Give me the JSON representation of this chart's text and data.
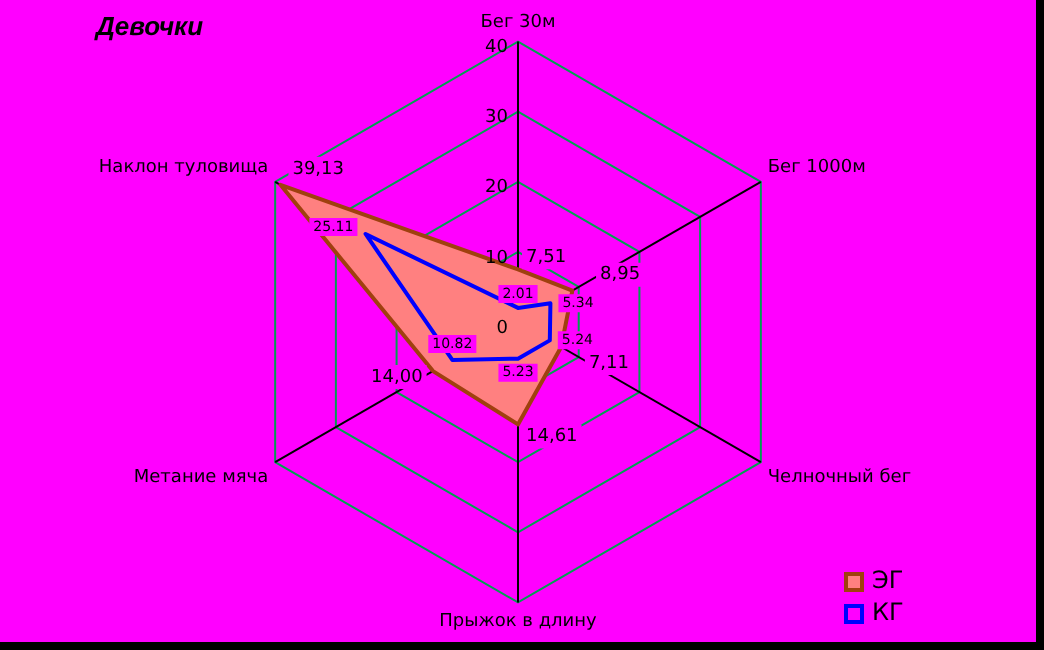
{
  "chart_data": {
    "type": "radar",
    "title": "Девочки",
    "categories": [
      "Бег 30м",
      "Бег 1000м",
      "Челночный бег",
      "Прыжок в длину",
      "Метание мяча",
      "Наклон туловища"
    ],
    "ylim": [
      0,
      40
    ],
    "yticks": [
      0,
      10,
      20,
      30,
      40
    ],
    "grid": true,
    "legend": "bottom right",
    "marker": "none",
    "series": [
      {
        "name": "ЭГ",
        "color": "#ff8080",
        "values": [
          7.51,
          8.95,
          7.11,
          14.61,
          14.0,
          39.13
        ],
        "value_labels": [
          "7,51",
          "8,95",
          "7,11",
          "14,61",
          "14,00",
          "39,13"
        ]
      },
      {
        "name": "КГ",
        "color": "#0000ff",
        "values": [
          2.01,
          5.34,
          5.24,
          5.23,
          10.82,
          25.11
        ],
        "value_labels": [
          "2.01",
          "5.34",
          "5.24",
          "5.23",
          "10.82",
          "25.11"
        ]
      }
    ]
  }
}
